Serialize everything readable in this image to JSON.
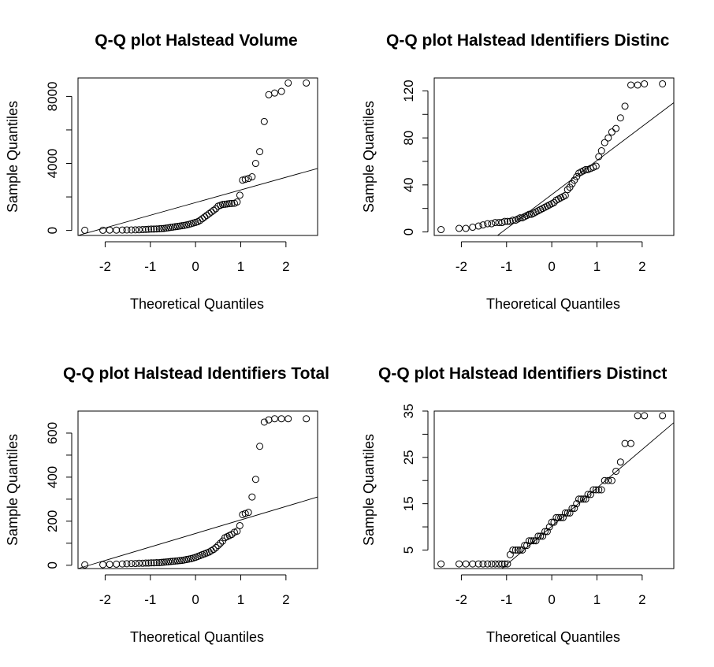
{
  "chart_data": [
    {
      "type": "scatter",
      "title": "Q-Q plot  Halstead Volume",
      "xlabel": "Theoretical Quantiles",
      "ylabel": "Sample Quantiles",
      "xlim": [
        -2.6,
        2.7
      ],
      "ylim": [
        -300,
        9100
      ],
      "xticks": [
        -2,
        -1,
        0,
        1,
        2
      ],
      "yticks": [
        0,
        4000,
        8000
      ],
      "reference_line": {
        "x": [
          -2.6,
          2.7
        ],
        "y": [
          -500,
          3700
        ]
      },
      "points": {
        "x": [
          -2.45,
          -2.05,
          -1.9,
          -1.75,
          -1.62,
          -1.52,
          -1.42,
          -1.33,
          -1.25,
          -1.17,
          -1.1,
          -1.04,
          -0.98,
          -0.92,
          -0.86,
          -0.8,
          -0.75,
          -0.7,
          -0.65,
          -0.6,
          -0.55,
          -0.5,
          -0.45,
          -0.4,
          -0.35,
          -0.3,
          -0.25,
          -0.2,
          -0.15,
          -0.1,
          -0.05,
          0.0,
          0.05,
          0.1,
          0.15,
          0.2,
          0.25,
          0.3,
          0.35,
          0.4,
          0.45,
          0.5,
          0.55,
          0.6,
          0.65,
          0.7,
          0.75,
          0.8,
          0.86,
          0.92,
          0.98,
          1.04,
          1.1,
          1.17,
          1.25,
          1.33,
          1.42,
          1.52,
          1.62,
          1.75,
          1.9,
          2.05,
          2.45
        ],
        "y": [
          10,
          10,
          20,
          20,
          25,
          30,
          30,
          35,
          40,
          50,
          60,
          70,
          80,
          80,
          90,
          100,
          110,
          120,
          140,
          160,
          180,
          200,
          220,
          240,
          260,
          280,
          300,
          330,
          360,
          400,
          440,
          480,
          520,
          600,
          700,
          800,
          900,
          1000,
          1100,
          1200,
          1300,
          1450,
          1500,
          1550,
          1560,
          1580,
          1600,
          1610,
          1620,
          1700,
          2100,
          3000,
          3050,
          3100,
          3200,
          4000,
          4700,
          6500,
          8100,
          8200,
          8300,
          8800,
          8800
        ]
      }
    },
    {
      "type": "scatter",
      "title": "Q-Q plot  Halstead Identifiers Distinc",
      "xlabel": "Theoretical Quantiles",
      "ylabel": "Sample Quantiles",
      "xlim": [
        -2.6,
        2.7
      ],
      "ylim": [
        -3,
        131
      ],
      "xticks": [
        -2,
        -1,
        0,
        1,
        2
      ],
      "yticks": [
        0,
        40,
        80,
        120
      ],
      "reference_line": {
        "x": [
          -1.2,
          2.7
        ],
        "y": [
          -3,
          110
        ]
      },
      "points": {
        "x": [
          -2.45,
          -2.05,
          -1.9,
          -1.75,
          -1.62,
          -1.52,
          -1.42,
          -1.33,
          -1.25,
          -1.17,
          -1.1,
          -1.04,
          -0.98,
          -0.92,
          -0.86,
          -0.8,
          -0.75,
          -0.7,
          -0.65,
          -0.6,
          -0.55,
          -0.5,
          -0.45,
          -0.4,
          -0.35,
          -0.3,
          -0.25,
          -0.2,
          -0.15,
          -0.1,
          -0.05,
          0.0,
          0.05,
          0.1,
          0.15,
          0.2,
          0.25,
          0.3,
          0.35,
          0.4,
          0.45,
          0.5,
          0.55,
          0.6,
          0.65,
          0.7,
          0.75,
          0.8,
          0.86,
          0.92,
          0.98,
          1.04,
          1.1,
          1.17,
          1.25,
          1.33,
          1.42,
          1.52,
          1.62,
          1.75,
          1.9,
          2.05,
          2.45
        ],
        "y": [
          2,
          3,
          3,
          4,
          5,
          6,
          7,
          7,
          8,
          8,
          8,
          9,
          9,
          9,
          10,
          10,
          11,
          12,
          12,
          13,
          14,
          15,
          15,
          16,
          17,
          18,
          19,
          20,
          21,
          22,
          23,
          24,
          25,
          27,
          28,
          29,
          30,
          31,
          36,
          38,
          41,
          44,
          47,
          50,
          51,
          52,
          53,
          53,
          54,
          55,
          56,
          64,
          69,
          76,
          80,
          85,
          88,
          97,
          107,
          125,
          125,
          126,
          126
        ]
      }
    },
    {
      "type": "scatter",
      "title": "Q-Q plot  Halstead Identifiers Total",
      "xlabel": "Theoretical Quantiles",
      "ylabel": "Sample Quantiles",
      "xlim": [
        -2.6,
        2.7
      ],
      "ylim": [
        -15,
        700
      ],
      "xticks": [
        -2,
        -1,
        0,
        1,
        2
      ],
      "yticks": [
        0,
        200,
        400,
        600
      ],
      "reference_line": {
        "x": [
          -2.6,
          2.7
        ],
        "y": [
          -40,
          310
        ]
      },
      "points": {
        "x": [
          -2.45,
          -2.05,
          -1.9,
          -1.75,
          -1.62,
          -1.52,
          -1.42,
          -1.33,
          -1.25,
          -1.17,
          -1.1,
          -1.04,
          -0.98,
          -0.92,
          -0.86,
          -0.8,
          -0.75,
          -0.7,
          -0.65,
          -0.6,
          -0.55,
          -0.5,
          -0.45,
          -0.4,
          -0.35,
          -0.3,
          -0.25,
          -0.2,
          -0.15,
          -0.1,
          -0.05,
          0.0,
          0.05,
          0.1,
          0.15,
          0.2,
          0.25,
          0.3,
          0.35,
          0.4,
          0.45,
          0.5,
          0.55,
          0.6,
          0.65,
          0.7,
          0.75,
          0.8,
          0.86,
          0.92,
          0.98,
          1.04,
          1.1,
          1.17,
          1.25,
          1.33,
          1.42,
          1.52,
          1.62,
          1.75,
          1.9,
          2.05,
          2.45
        ],
        "y": [
          2,
          3,
          4,
          5,
          6,
          7,
          8,
          8,
          9,
          9,
          10,
          10,
          11,
          11,
          12,
          12,
          13,
          14,
          15,
          16,
          17,
          18,
          19,
          20,
          21,
          22,
          24,
          26,
          28,
          30,
          33,
          36,
          40,
          44,
          48,
          52,
          56,
          60,
          66,
          72,
          80,
          90,
          100,
          110,
          125,
          130,
          135,
          140,
          150,
          155,
          180,
          230,
          235,
          240,
          310,
          390,
          540,
          650,
          660,
          665,
          665,
          665,
          665
        ]
      }
    },
    {
      "type": "scatter",
      "title": "Q-Q plot  Halstead Identifiers Distinct",
      "xlabel": "Theoretical Quantiles",
      "ylabel": "Sample Quantiles",
      "xlim": [
        -2.6,
        2.7
      ],
      "ylim": [
        1,
        35
      ],
      "xticks": [
        -2,
        -1,
        0,
        1,
        2
      ],
      "yticks": [
        5,
        15,
        25,
        35
      ],
      "reference_line": {
        "x": [
          -1.1,
          2.7
        ],
        "y": [
          1,
          32.5
        ]
      },
      "points": {
        "x": [
          -2.45,
          -2.05,
          -1.9,
          -1.75,
          -1.62,
          -1.52,
          -1.42,
          -1.33,
          -1.25,
          -1.17,
          -1.1,
          -1.04,
          -0.98,
          -0.92,
          -0.86,
          -0.8,
          -0.75,
          -0.7,
          -0.65,
          -0.6,
          -0.55,
          -0.5,
          -0.45,
          -0.4,
          -0.35,
          -0.3,
          -0.25,
          -0.2,
          -0.15,
          -0.1,
          -0.05,
          0.0,
          0.05,
          0.1,
          0.15,
          0.2,
          0.25,
          0.3,
          0.35,
          0.4,
          0.45,
          0.5,
          0.55,
          0.6,
          0.65,
          0.7,
          0.75,
          0.8,
          0.86,
          0.92,
          0.98,
          1.04,
          1.1,
          1.17,
          1.25,
          1.33,
          1.42,
          1.52,
          1.62,
          1.75,
          1.9,
          2.05,
          2.45
        ],
        "y": [
          2,
          2,
          2,
          2,
          2,
          2,
          2,
          2,
          2,
          2,
          2,
          2,
          2,
          4,
          5,
          5,
          5,
          5,
          5,
          6,
          6,
          7,
          7,
          7,
          7,
          8,
          8,
          8,
          9,
          9,
          10,
          11,
          11,
          12,
          12,
          12,
          12,
          13,
          13,
          13,
          14,
          14,
          15,
          16,
          16,
          16,
          16,
          17,
          17,
          18,
          18,
          18,
          18,
          20,
          20,
          20,
          22,
          24,
          28,
          28,
          34,
          34,
          34
        ]
      }
    }
  ]
}
